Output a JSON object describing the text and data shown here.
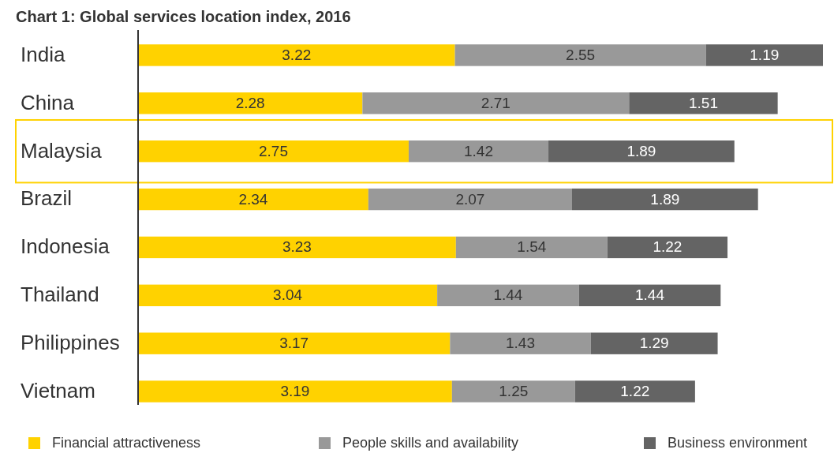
{
  "chart_data": {
    "type": "bar",
    "orientation": "horizontal",
    "stacked": true,
    "data_labels": true,
    "legend": "bottom",
    "title": "Chart 1: Global services location index, 2016",
    "categories": [
      "India",
      "China",
      "Malaysia",
      "Brazil",
      "Indonesia",
      "Thailand",
      "Philippines",
      "Vietnam"
    ],
    "series": [
      {
        "name": "Financial attractiveness",
        "color": "#ffd200",
        "values": [
          3.22,
          2.28,
          2.75,
          2.34,
          3.23,
          3.04,
          3.17,
          3.19
        ]
      },
      {
        "name": "People skills and availability",
        "color": "#999999",
        "values": [
          2.55,
          2.71,
          1.42,
          2.07,
          1.54,
          1.44,
          1.43,
          1.25
        ]
      },
      {
        "name": "Business environment",
        "color": "#646464",
        "values": [
          1.19,
          1.51,
          1.89,
          1.89,
          1.22,
          1.44,
          1.29,
          1.22
        ]
      }
    ]
  }
}
